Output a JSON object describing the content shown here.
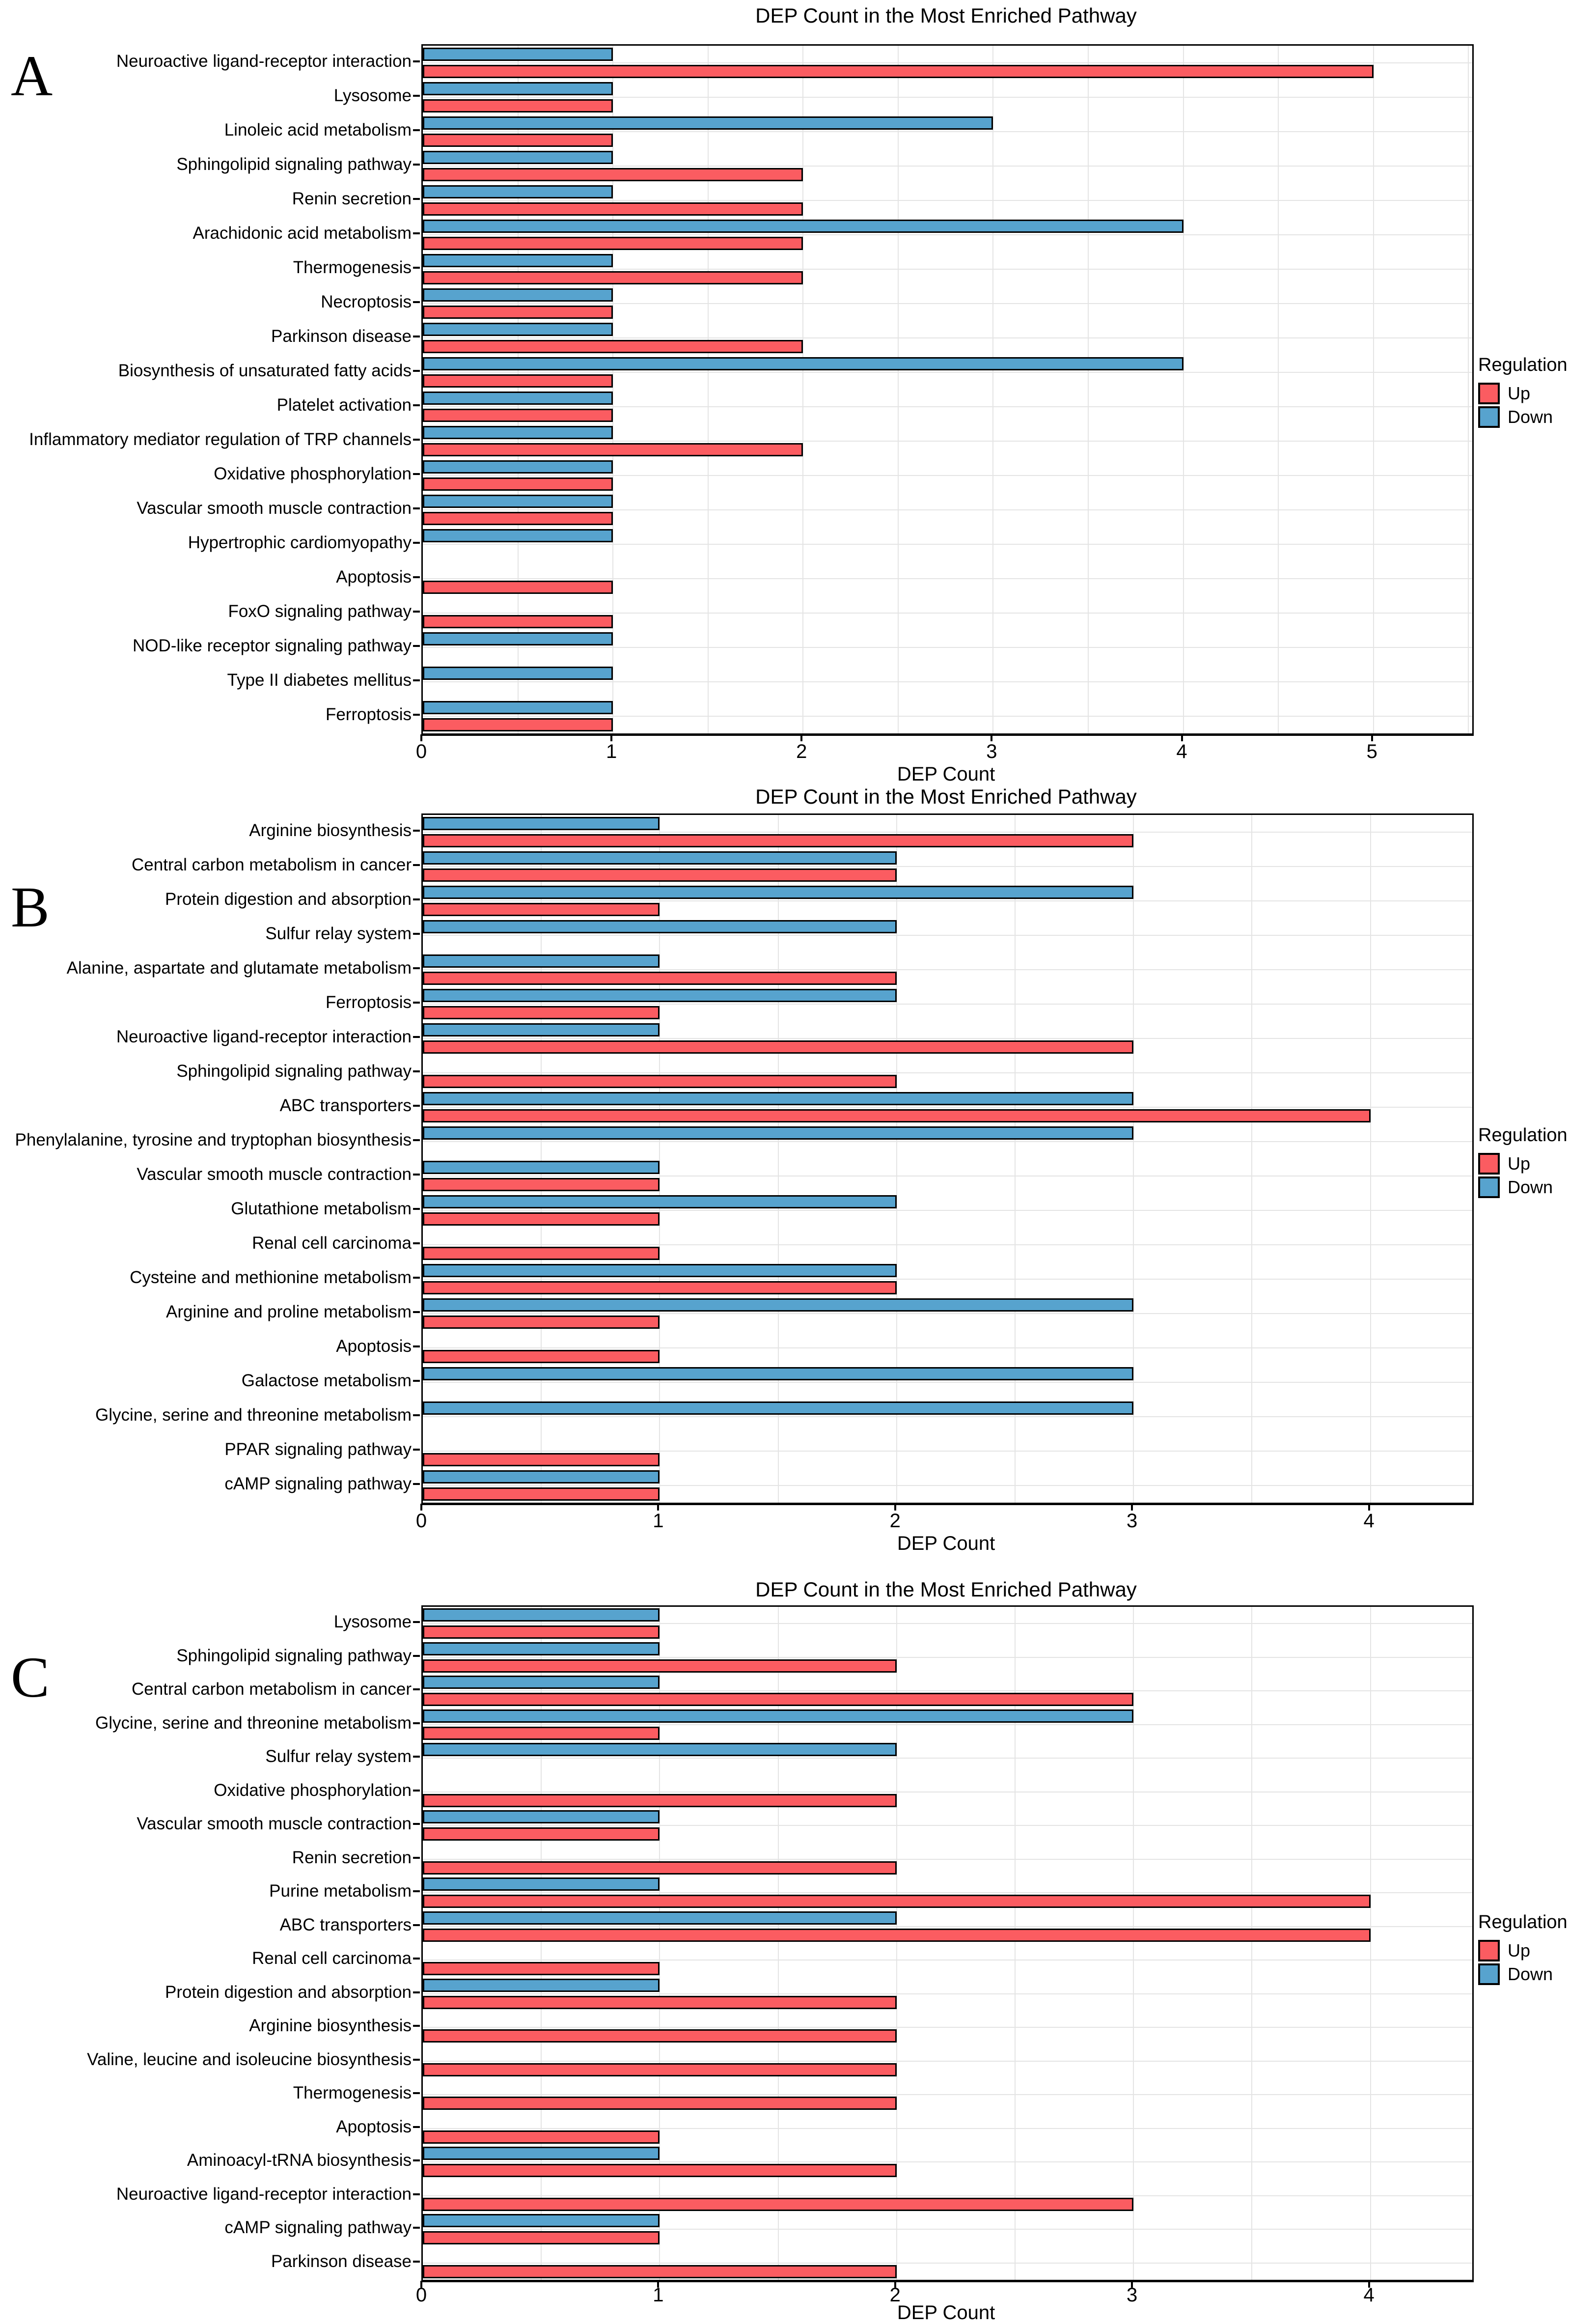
{
  "figure": {
    "legend": {
      "title": "Regulation",
      "up_label": "Up",
      "down_label": "Down"
    },
    "colors": {
      "up": "#FB5C61",
      "down": "#57A3CE",
      "bar_border": "#000000",
      "grid": "#E4E4E4"
    }
  },
  "chart_data": [
    {
      "panel_label": "A",
      "type": "bar",
      "orientation": "horizontal",
      "title": "DEP Count in the Most Enriched Pathway",
      "xlabel": "DEP Count",
      "ylabel": "",
      "xlim": [
        0,
        5.52
      ],
      "xticks": [
        0,
        1,
        2,
        3,
        4,
        5
      ],
      "grid": "on",
      "legend_position": "right",
      "categories": [
        "Neuroactive ligand-receptor interaction",
        "Lysosome",
        "Linoleic acid metabolism",
        "Sphingolipid signaling pathway",
        "Renin secretion",
        "Arachidonic acid metabolism",
        "Thermogenesis",
        "Necroptosis",
        "Parkinson disease",
        "Biosynthesis of unsaturated fatty acids",
        "Platelet activation",
        "Inflammatory mediator regulation of TRP channels",
        "Oxidative phosphorylation",
        "Vascular smooth muscle contraction",
        "Hypertrophic cardiomyopathy",
        "Apoptosis",
        "FoxO signaling pathway",
        "NOD-like receptor signaling pathway",
        "Type II diabetes mellitus",
        "Ferroptosis"
      ],
      "series": [
        {
          "name": "Up",
          "values": [
            5,
            1,
            1,
            2,
            2,
            2,
            2,
            1,
            2,
            1,
            1,
            2,
            1,
            1,
            null,
            1,
            1,
            null,
            null,
            1
          ]
        },
        {
          "name": "Down",
          "values": [
            1,
            1,
            3,
            1,
            1,
            4,
            1,
            1,
            1,
            4,
            1,
            1,
            1,
            1,
            1,
            null,
            null,
            1,
            1,
            1
          ]
        }
      ]
    },
    {
      "panel_label": "B",
      "type": "bar",
      "orientation": "horizontal",
      "title": "DEP Count in the Most Enriched Pathway",
      "xlabel": "DEP Count",
      "ylabel": "",
      "xlim": [
        0,
        4.43
      ],
      "xticks": [
        0,
        1,
        2,
        3,
        4
      ],
      "grid": "on",
      "legend_position": "right",
      "categories": [
        "Arginine biosynthesis",
        "Central carbon metabolism in cancer",
        "Protein digestion and absorption",
        "Sulfur relay system",
        "Alanine, aspartate and glutamate metabolism",
        "Ferroptosis",
        "Neuroactive ligand-receptor interaction",
        "Sphingolipid signaling pathway",
        "ABC transporters",
        "Phenylalanine, tyrosine and tryptophan biosynthesis",
        "Vascular smooth muscle contraction",
        "Glutathione metabolism",
        "Renal cell carcinoma",
        "Cysteine and methionine metabolism",
        "Arginine and proline metabolism",
        "Apoptosis",
        "Galactose metabolism",
        "Glycine, serine and threonine metabolism",
        "PPAR signaling pathway",
        "cAMP signaling pathway"
      ],
      "series": [
        {
          "name": "Up",
          "values": [
            3,
            2,
            1,
            null,
            2,
            1,
            3,
            2,
            4,
            null,
            1,
            1,
            1,
            2,
            1,
            1,
            null,
            null,
            1,
            1
          ]
        },
        {
          "name": "Down",
          "values": [
            1,
            2,
            3,
            2,
            1,
            2,
            1,
            null,
            3,
            3,
            1,
            2,
            null,
            2,
            3,
            null,
            3,
            3,
            null,
            1
          ]
        }
      ]
    },
    {
      "panel_label": "C",
      "type": "bar",
      "orientation": "horizontal",
      "title": "DEP Count in the Most Enriched Pathway",
      "xlabel": "DEP Count",
      "ylabel": "",
      "xlim": [
        0,
        4.43
      ],
      "xticks": [
        0,
        1,
        2,
        3,
        4
      ],
      "grid": "on",
      "legend_position": "right",
      "categories": [
        "Lysosome",
        "Sphingolipid signaling pathway",
        "Central carbon metabolism in cancer",
        "Glycine, serine and threonine metabolism",
        "Sulfur relay system",
        "Oxidative phosphorylation",
        "Vascular smooth muscle contraction",
        "Renin secretion",
        "Purine metabolism",
        "ABC transporters",
        "Renal cell carcinoma",
        "Protein digestion and absorption",
        "Arginine biosynthesis",
        "Valine, leucine and isoleucine biosynthesis",
        "Thermogenesis",
        "Apoptosis",
        "Aminoacyl-tRNA biosynthesis",
        "Neuroactive ligand-receptor interaction",
        "cAMP signaling pathway",
        "Parkinson disease"
      ],
      "series": [
        {
          "name": "Up",
          "values": [
            1,
            2,
            3,
            1,
            null,
            2,
            1,
            2,
            4,
            4,
            1,
            2,
            2,
            2,
            2,
            1,
            2,
            3,
            1,
            2
          ]
        },
        {
          "name": "Down",
          "values": [
            1,
            1,
            1,
            3,
            2,
            null,
            1,
            null,
            1,
            2,
            null,
            1,
            null,
            null,
            null,
            null,
            1,
            null,
            1,
            null
          ]
        }
      ]
    }
  ]
}
